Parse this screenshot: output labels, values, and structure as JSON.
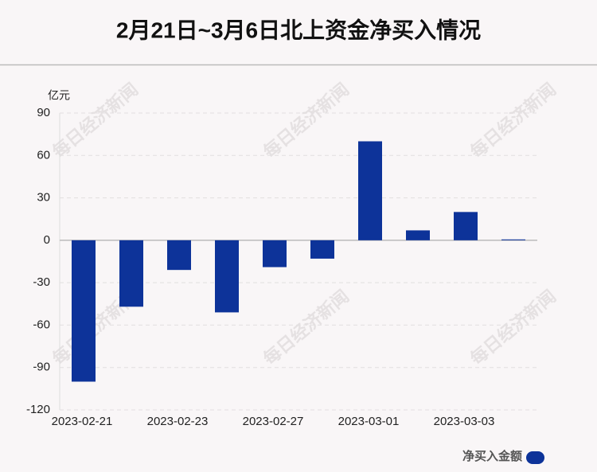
{
  "chart_data": {
    "type": "bar",
    "title": "2月21日~3月6日北上资金净买入情况",
    "y_unit": "亿元",
    "watermark": "每日经济新闻",
    "categories": [
      "2023-02-21",
      null,
      "2023-02-23",
      null,
      "2023-02-27",
      null,
      "2023-03-01",
      null,
      "2023-03-03",
      null
    ],
    "series": [
      {
        "name": "净买入金额",
        "color": "#0d3399",
        "values": [
          -100,
          -47,
          -21,
          -51,
          -19,
          -13,
          70,
          7,
          20,
          0.6
        ]
      }
    ],
    "ylim": [
      -120,
      90
    ],
    "yticks": [
      -120,
      -90,
      -60,
      -30,
      0,
      30,
      60,
      90
    ],
    "grid": true
  }
}
